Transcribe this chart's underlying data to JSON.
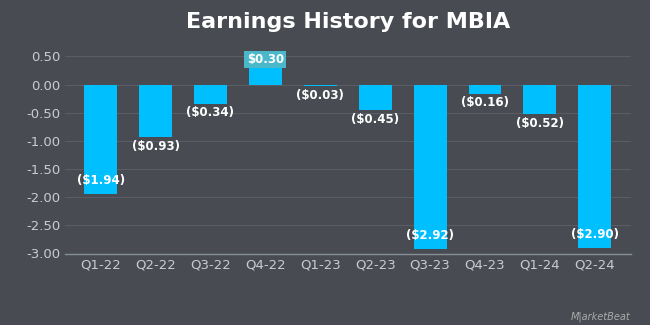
{
  "title": "Earnings History for MBIA",
  "categories": [
    "Q1-22",
    "Q2-22",
    "Q3-22",
    "Q4-22",
    "Q1-23",
    "Q2-23",
    "Q3-23",
    "Q4-23",
    "Q1-24",
    "Q2-24"
  ],
  "values": [
    -1.94,
    -0.93,
    -0.34,
    0.3,
    -0.03,
    -0.45,
    -2.92,
    -0.16,
    -0.52,
    -2.9
  ],
  "bar_color": "#00bfff",
  "positive_label_bg": "#4ab8c8",
  "background_color": "#484c52",
  "plot_bg_color": "#484c52",
  "grid_color": "#5a5f66",
  "text_color": "#ffffff",
  "ytick_color": "#c8ccd0",
  "xtick_color": "#c8ccd0",
  "bottom_spine_color": "#888e96",
  "ylim": [
    -3.0,
    0.75
  ],
  "yticks": [
    0.5,
    0.0,
    -0.5,
    -1.0,
    -1.5,
    -2.0,
    -2.5,
    -3.0
  ],
  "title_fontsize": 16,
  "tick_fontsize": 9.5,
  "label_fontsize": 8.5
}
